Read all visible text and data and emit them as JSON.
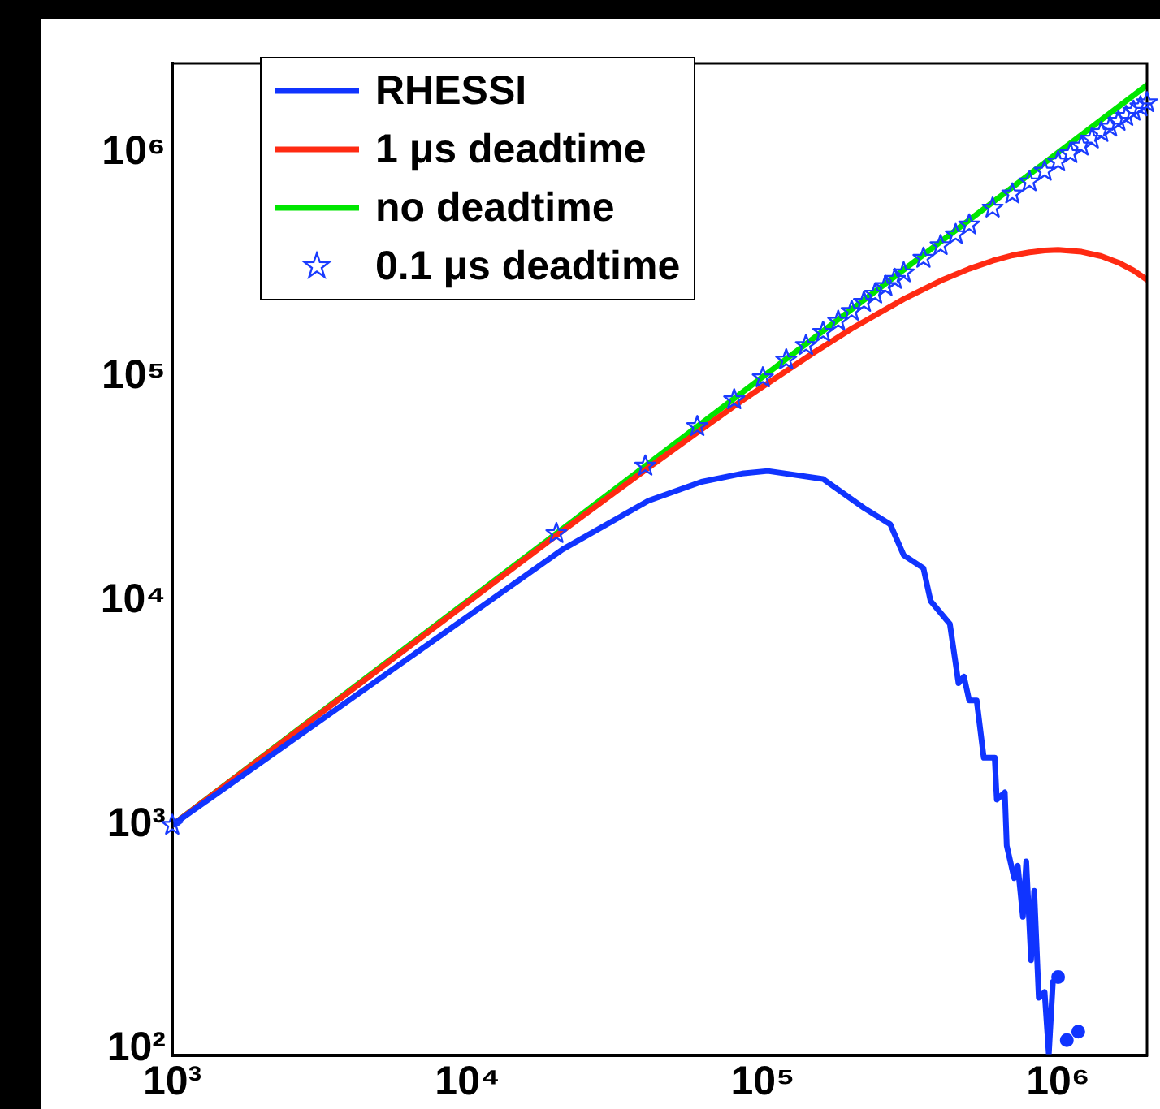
{
  "chart_data": {
    "type": "line",
    "log": "xy",
    "grid": false,
    "legend": "top left",
    "line_style": "solid",
    "xlim": [
      1000,
      2000000
    ],
    "ylim": [
      94,
      2500000
    ],
    "xticks": [
      {
        "value": 1000,
        "label": "10³"
      },
      {
        "value": 10000,
        "label": "10⁴"
      },
      {
        "value": 100000,
        "label": "10⁵"
      },
      {
        "value": 1000000,
        "label": "10⁶"
      }
    ],
    "yticks": [
      {
        "value": 100,
        "label": "10²"
      },
      {
        "value": 1000,
        "label": "10³"
      },
      {
        "value": 10000,
        "label": "10⁴"
      },
      {
        "value": 100000,
        "label": "10⁵"
      },
      {
        "value": 1000000,
        "label": "10⁶"
      }
    ],
    "series": [
      {
        "name": "RHESSI",
        "marker": "none",
        "color": "#1034ff",
        "x": [
          1000,
          21000,
          41000,
          62000,
          85000,
          104000,
          160000,
          220000,
          270000,
          300000,
          350000,
          370000,
          430000,
          460000,
          480000,
          500000,
          530000,
          560000,
          610000,
          620000,
          660000,
          670000,
          710000,
          730000,
          760000,
          780000,
          810000,
          830000,
          860000,
          900000,
          930000,
          960000,
          980000,
          1000000,
          1030000,
          1070000,
          1120000,
          1170000
        ],
        "values": [
          1000,
          17000,
          28000,
          34000,
          37000,
          38000,
          35000,
          26000,
          22000,
          16000,
          14000,
          10000,
          7900,
          4300,
          4600,
          3600,
          3600,
          2000,
          2000,
          1300,
          1400,
          810,
          580,
          660,
          390,
          690,
          250,
          510,
          170,
          180,
          95,
          200,
          null,
          210,
          null,
          110,
          null,
          120
        ]
      },
      {
        "name": "1 μs deadtime",
        "marker": "none",
        "color": "#ff2a12",
        "x": [
          1000,
          20000,
          40000,
          60000,
          80000,
          100000,
          150000,
          200000,
          300000,
          400000,
          500000,
          600000,
          700000,
          800000,
          900000,
          1000000,
          1200000,
          1400000,
          1600000,
          1800000,
          2000000
        ],
        "values": [
          1000,
          19600,
          38400,
          56500,
          74000,
          90500,
          129000,
          164000,
          222000,
          268000,
          303000,
          329000,
          348000,
          359000,
          366000,
          368000,
          361000,
          345000,
          323000,
          298000,
          271000
        ]
      },
      {
        "name": "no deadtime",
        "marker": "none",
        "color": "#00e600",
        "x": [
          1000,
          2000000
        ],
        "values": [
          1000,
          2000000
        ]
      },
      {
        "name": "0.1 μs deadtime",
        "type": "scatter",
        "marker": "star",
        "color": "#1a3cff",
        "x": [
          1000,
          20000,
          40000,
          60000,
          80000,
          100000,
          120000,
          140000,
          160000,
          180000,
          200000,
          220000,
          240000,
          260000,
          280000,
          300000,
          350000,
          400000,
          450000,
          500000,
          600000,
          700000,
          800000,
          900000,
          1000000,
          1100000,
          1200000,
          1300000,
          1400000,
          1500000,
          1600000,
          1700000,
          1800000,
          1900000,
          2000000
        ],
        "values": [
          1000,
          20000,
          40000,
          60000,
          79000,
          99000,
          119000,
          138000,
          158000,
          177000,
          196000,
          215000,
          234000,
          253000,
          272000,
          291000,
          338000,
          385000,
          431000,
          476000,
          566000,
          654000,
          741000,
          826000,
          910000,
          990000,
          1070000,
          1150000,
          1230000,
          1300000,
          1380000,
          1450000,
          1530000,
          1600000,
          1670000
        ]
      }
    ]
  }
}
